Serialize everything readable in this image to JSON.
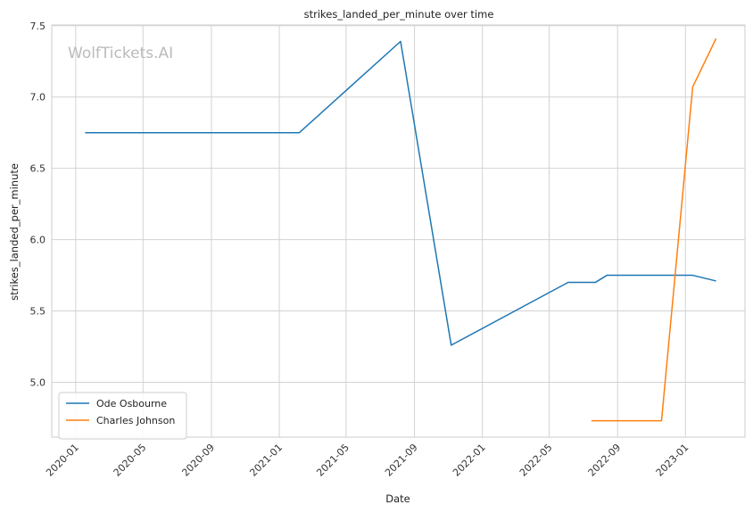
{
  "chart_data": {
    "type": "line",
    "title": "strikes_landed_per_minute over time",
    "xlabel": "Date",
    "ylabel": "strikes_landed_per_minute",
    "watermark": "WolfTickets.AI",
    "xlim": [
      "2019-11-19",
      "2023-04-18"
    ],
    "ylim": [
      4.615,
      7.505
    ],
    "grid": true,
    "legend_position": "lower-left",
    "x_ticks": [
      {
        "date": "2020-01-01",
        "label": "2020-01"
      },
      {
        "date": "2020-05-01",
        "label": "2020-05"
      },
      {
        "date": "2020-09-01",
        "label": "2020-09"
      },
      {
        "date": "2021-01-01",
        "label": "2021-01"
      },
      {
        "date": "2021-05-01",
        "label": "2021-05"
      },
      {
        "date": "2021-09-01",
        "label": "2021-09"
      },
      {
        "date": "2022-01-01",
        "label": "2022-01"
      },
      {
        "date": "2022-05-01",
        "label": "2022-05"
      },
      {
        "date": "2022-09-01",
        "label": "2022-09"
      },
      {
        "date": "2023-01-01",
        "label": "2023-01"
      }
    ],
    "y_ticks": [
      {
        "value": 5.0,
        "label": "5.0"
      },
      {
        "value": 5.5,
        "label": "5.5"
      },
      {
        "value": 6.0,
        "label": "6.0"
      },
      {
        "value": 6.5,
        "label": "6.5"
      },
      {
        "value": 7.0,
        "label": "7.0"
      },
      {
        "value": 7.5,
        "label": "7.5"
      }
    ],
    "series": [
      {
        "name": "Ode Osbourne",
        "color": "#1f77b4",
        "points": [
          {
            "x": "2020-01-18",
            "y": 6.75
          },
          {
            "x": "2021-02-06",
            "y": 6.75
          },
          {
            "x": "2021-08-07",
            "y": 7.39
          },
          {
            "x": "2021-11-06",
            "y": 5.26
          },
          {
            "x": "2022-06-04",
            "y": 5.7
          },
          {
            "x": "2022-07-23",
            "y": 5.7
          },
          {
            "x": "2022-08-13",
            "y": 5.75
          },
          {
            "x": "2023-01-14",
            "y": 5.75
          },
          {
            "x": "2023-02-25",
            "y": 5.71
          }
        ]
      },
      {
        "name": "Charles Johnson",
        "color": "#ff7f0e",
        "points": [
          {
            "x": "2022-07-16",
            "y": 4.73
          },
          {
            "x": "2022-11-19",
            "y": 4.73
          },
          {
            "x": "2023-01-14",
            "y": 7.07
          },
          {
            "x": "2023-02-25",
            "y": 7.41
          }
        ]
      }
    ]
  }
}
